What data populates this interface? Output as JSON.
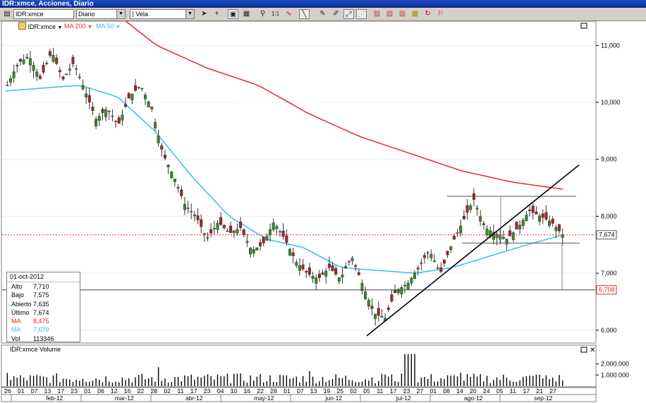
{
  "window": {
    "title": "IDR:xmce, Acciones, Diario"
  },
  "toolbar": {
    "symbol": "IDR:xmce",
    "period": "Diario",
    "chart_style": "Vela",
    "buttons": [
      "cursor-arrow-icon",
      "crosshair-icon",
      "box-select-icon",
      "grid-icon",
      "zoom-icon",
      "one-to-one-icon",
      "wave-icon",
      "trendline-icon",
      "pencil-icon",
      "annotation-icon",
      "fibonacci-icon",
      "magnet-icon",
      "layout-icon",
      "window-icon",
      "bars-icon",
      "chart-icon",
      "indicator-icon",
      "cycle-icon",
      "flag-icon"
    ]
  },
  "legend": {
    "symbol": "IDR:xmce",
    "ma200": "MA 200",
    "ma50": "MA 50",
    "colors": {
      "ma200": "#e8282a",
      "ma50": "#2cc4ec"
    }
  },
  "last_price_label": "7,674",
  "low_line_label": "6,708",
  "info": {
    "date": "01-oct-2012",
    "rows": [
      {
        "label": "Alto",
        "value": "7,710"
      },
      {
        "label": "Bajo",
        "value": "7,575"
      },
      {
        "label": "Abierto",
        "value": "7,635"
      },
      {
        "label": "Último",
        "value": "7,674"
      },
      {
        "label": "MA",
        "value": "8,475"
      },
      {
        "label": "MA",
        "value": "7,679"
      },
      {
        "label": "Vol",
        "value": "113346"
      }
    ]
  },
  "volume_title": "IDR:xmce Volume",
  "chart_data": [
    {
      "type": "candlestick",
      "y_ticks": [
        "6,000",
        "7,000",
        "8,000",
        "9,000",
        "10,000",
        "11,000"
      ],
      "ylim": [
        5800,
        11400
      ],
      "x_day_labels": [
        "26",
        "01",
        "07",
        "13",
        "17",
        "23",
        "01",
        "06",
        "12",
        "16",
        "22",
        "28",
        "02",
        "11",
        "17",
        "23",
        "04",
        "10",
        "16",
        "22",
        "28",
        "01",
        "07",
        "13",
        "19",
        "25",
        "02",
        "05",
        "11",
        "17",
        "23",
        "27",
        "01",
        "08",
        "14",
        "20",
        "24",
        "05",
        "11",
        "17",
        "21",
        "27"
      ],
      "x_month_labels": [
        "feb-12",
        "mar-12",
        "abr-12",
        "may-12",
        "jun-12",
        "jul-12",
        "ago-12",
        "sep-12"
      ],
      "annotations": {
        "last_price": 7674,
        "support_line": 6708,
        "range_top": 8350,
        "range_bottom": 7530
      },
      "trendline": {
        "from": 5900,
        "to": 8900
      },
      "series": [
        {
          "name": "IDR:xmce",
          "approx_close_path": [
            10300,
            10700,
            10800,
            10400,
            10900,
            10400,
            10700,
            10200,
            9700,
            9900,
            9600,
            10100,
            10300,
            9900,
            9100,
            8700,
            8200,
            8000,
            7600,
            7900,
            7700,
            7800,
            7400,
            7500,
            7900,
            7600,
            7200,
            7000,
            6900,
            7100,
            6900,
            7300,
            6800,
            6300,
            6200,
            6700,
            6800,
            7100,
            7400,
            7000,
            7500,
            7900,
            8300,
            7800,
            7700,
            7600,
            7800,
            8100,
            8000,
            7900,
            7674
          ]
        },
        {
          "name": "MA 200",
          "approx_path": [
            11700,
            11000,
            10600,
            10300,
            9800,
            9400,
            9100,
            8800,
            8600,
            8475
          ]
        },
        {
          "name": "MA 50",
          "approx_path": [
            10200,
            10250,
            10300,
            10100,
            9500,
            8700,
            8000,
            7600,
            7450,
            7100,
            7050,
            7000,
            7100,
            7300,
            7500,
            7679
          ]
        }
      ]
    },
    {
      "type": "bar",
      "y_ticks": [
        "1.000.000",
        "2.000.000"
      ],
      "ylim": [
        0,
        3000000
      ]
    }
  ]
}
